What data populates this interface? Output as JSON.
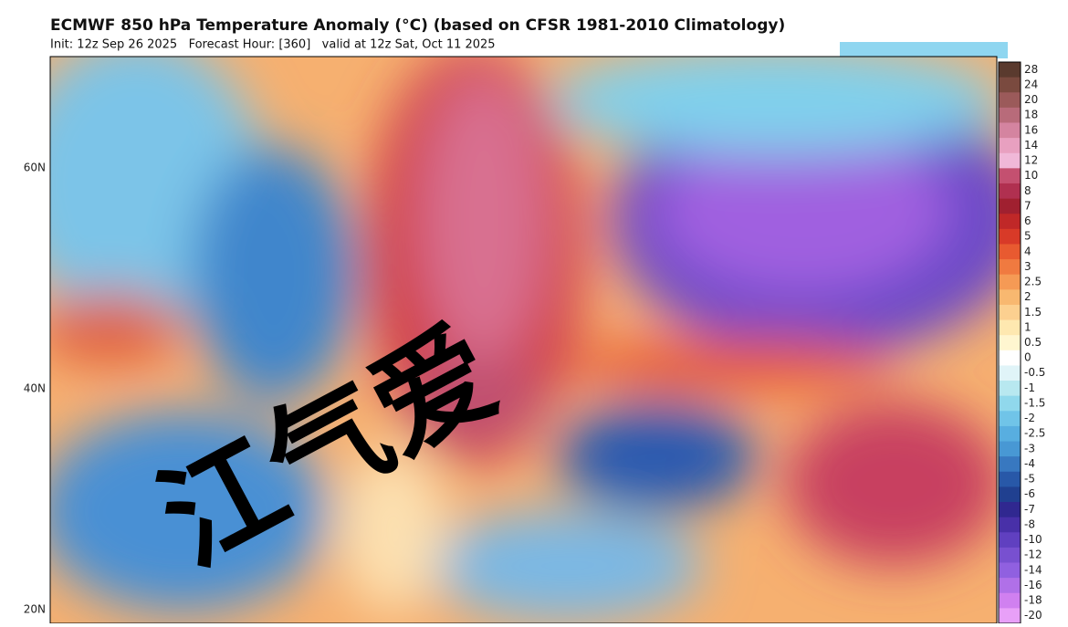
{
  "header": {
    "title": "ECMWF 850 hPa Temperature Anomaly (°C) (based on CFSR 1981-2010 Climatology)",
    "subtitle": "Init: 12z Sep 26 2025   Forecast Hour: [360]   valid at 12z Sat, Oct 11 2025"
  },
  "map": {
    "latitude_labels": [
      "60N",
      "40N",
      "20N"
    ],
    "watermark": "江气爱"
  },
  "colorbar": {
    "levels": [
      28,
      24,
      20,
      18,
      16,
      14,
      12,
      10,
      8,
      7,
      6,
      5,
      4,
      3,
      2.5,
      2,
      1.5,
      1,
      0.5,
      0,
      -0.5,
      -1,
      -1.5,
      -2,
      -2.5,
      -3,
      -4,
      -5,
      -6,
      -7,
      -8,
      -10,
      -12,
      -14,
      -16,
      -18,
      -20
    ],
    "colors": [
      "#5a3a2e",
      "#7a4a3f",
      "#9b5a5a",
      "#b86b7a",
      "#d484a0",
      "#e8a0c0",
      "#f0b8d8",
      "#c45070",
      "#b03050",
      "#a02030",
      "#c02828",
      "#d83a28",
      "#e85a30",
      "#f07a40",
      "#f59a55",
      "#f8b870",
      "#fcd090",
      "#fee8b0",
      "#fff6d0",
      "#ffffff",
      "#e0f4f8",
      "#b8e8f0",
      "#90d8ec",
      "#70c4e8",
      "#58aee0",
      "#4898d4",
      "#3878c0",
      "#2858a8",
      "#204090",
      "#302890",
      "#4830a8",
      "#6040c0",
      "#7850d0",
      "#9060e0",
      "#b070e8",
      "#d080f0",
      "#e8a0f8"
    ]
  }
}
